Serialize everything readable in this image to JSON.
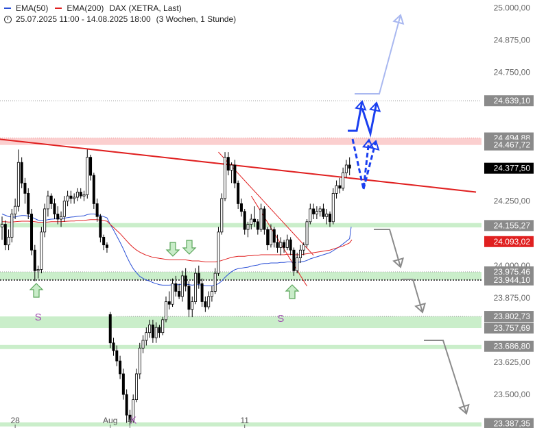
{
  "legend": {
    "ema50_label": "EMA(50)",
    "ema200_label": "EMA(200)",
    "instrument": "DAX (XETRA, Last)",
    "range": "25.07.2025 11:00 - 14.08.2025 18:00",
    "period": "(3 Wochen, 1 Stunde)"
  },
  "colors": {
    "ema50": "#2a4fd6",
    "ema200": "#e02020",
    "trendline": "#e02020",
    "support_zone": "#9fe09f",
    "resistance_zone": "#f7a7a7",
    "arrow_blue": "#1a3ff0",
    "arrow_lightblue": "#a9b8f0",
    "arrow_gray": "#8a8a8a",
    "candle": "#000000"
  },
  "chart_data": {
    "type": "candlestick",
    "x_ticks": [
      {
        "label": "28",
        "bar": 4
      },
      {
        "label": "Aug",
        "bar": 33
      },
      {
        "label": "4",
        "bar": 39
      },
      {
        "label": "11",
        "bar": 74
      }
    ],
    "y_ticks": [
      25000,
      24875,
      24750,
      24250,
      24000,
      23875,
      23625,
      23500
    ],
    "y_tick_labels": [
      "25.000,00",
      "24.875,00",
      "24.750,00",
      "24.250,00",
      "24.000,00",
      "23.875,00",
      "23.625,00",
      "23.500,00"
    ],
    "ylim": [
      23370,
      25030
    ],
    "levels": [
      {
        "value": 24639.1,
        "label": "24.639,10",
        "style": "dotted",
        "color": "#888888"
      },
      {
        "value": 24494.88,
        "label": "24.494,88",
        "style": "zone-red",
        "color": "#888888"
      },
      {
        "value": 24467.72,
        "label": "24.467,72",
        "style": "zone-red-low",
        "color": "#888888"
      },
      {
        "value": 24377.5,
        "label": "24.377,50",
        "style": "last",
        "color": "#000000"
      },
      {
        "value": 24155.27,
        "label": "24.155,27",
        "style": "zone-green",
        "color": "#888888"
      },
      {
        "value": 24093.02,
        "label": "24.093,02",
        "style": "ema200",
        "color": "#e02020"
      },
      {
        "value": 23975.46,
        "label": "23.975,46",
        "style": "zone-green",
        "color": "#888888"
      },
      {
        "value": 23944.1,
        "label": "23.944,10",
        "style": "dotted-bold",
        "color": "#888888"
      },
      {
        "value": 23802.73,
        "label": "23.802,73",
        "style": "zone-green",
        "color": "#888888"
      },
      {
        "value": 23757.69,
        "label": "23.757,69",
        "style": "zone-green-low",
        "color": "#888888"
      },
      {
        "value": 23686.8,
        "label": "23.686,80",
        "style": "zone-green",
        "color": "#888888"
      },
      {
        "value": 23387.35,
        "label": "23.387,35",
        "style": "zone-green",
        "color": "#888888"
      }
    ],
    "annotations": [
      {
        "text": "S",
        "bar": 11,
        "value": 23800
      },
      {
        "text": "K",
        "bar": 40,
        "value": 23400
      },
      {
        "text": "S",
        "bar": 85,
        "value": 23795
      }
    ],
    "candles": [
      {
        "o": 24150,
        "h": 24190,
        "l": 24100,
        "c": 24160
      },
      {
        "o": 24160,
        "h": 24175,
        "l": 24060,
        "c": 24080
      },
      {
        "o": 24080,
        "h": 24140,
        "l": 24060,
        "c": 24110
      },
      {
        "o": 24110,
        "h": 24220,
        "l": 24090,
        "c": 24200
      },
      {
        "o": 24200,
        "h": 24260,
        "l": 24180,
        "c": 24230
      },
      {
        "o": 24230,
        "h": 24450,
        "l": 24210,
        "c": 24400
      },
      {
        "o": 24400,
        "h": 24420,
        "l": 24300,
        "c": 24320
      },
      {
        "o": 24320,
        "h": 24340,
        "l": 24240,
        "c": 24280
      },
      {
        "o": 24280,
        "h": 24300,
        "l": 24180,
        "c": 24200
      },
      {
        "o": 24200,
        "h": 24220,
        "l": 24040,
        "c": 24060
      },
      {
        "o": 24060,
        "h": 24080,
        "l": 23940,
        "c": 23980
      },
      {
        "o": 23980,
        "h": 24000,
        "l": 23950,
        "c": 23985
      },
      {
        "o": 23985,
        "h": 24150,
        "l": 23970,
        "c": 24130
      },
      {
        "o": 24130,
        "h": 24240,
        "l": 24110,
        "c": 24220
      },
      {
        "o": 24220,
        "h": 24290,
        "l": 24190,
        "c": 24270
      },
      {
        "o": 24270,
        "h": 24280,
        "l": 24220,
        "c": 24240
      },
      {
        "o": 24240,
        "h": 24260,
        "l": 24180,
        "c": 24200
      },
      {
        "o": 24200,
        "h": 24230,
        "l": 24160,
        "c": 24180
      },
      {
        "o": 24180,
        "h": 24210,
        "l": 24150,
        "c": 24190
      },
      {
        "o": 24190,
        "h": 24270,
        "l": 24170,
        "c": 24250
      },
      {
        "o": 24250,
        "h": 24290,
        "l": 24230,
        "c": 24270
      },
      {
        "o": 24270,
        "h": 24290,
        "l": 24240,
        "c": 24260
      },
      {
        "o": 24260,
        "h": 24280,
        "l": 24240,
        "c": 24265
      },
      {
        "o": 24265,
        "h": 24300,
        "l": 24250,
        "c": 24285
      },
      {
        "o": 24285,
        "h": 24300,
        "l": 24260,
        "c": 24270
      },
      {
        "o": 24270,
        "h": 24290,
        "l": 24250,
        "c": 24275
      },
      {
        "o": 24275,
        "h": 24450,
        "l": 24260,
        "c": 24420
      },
      {
        "o": 24420,
        "h": 24430,
        "l": 24330,
        "c": 24350
      },
      {
        "o": 24350,
        "h": 24360,
        "l": 24220,
        "c": 24240
      },
      {
        "o": 24240,
        "h": 24260,
        "l": 24170,
        "c": 24190
      },
      {
        "o": 24190,
        "h": 24200,
        "l": 24090,
        "c": 24110
      },
      {
        "o": 24110,
        "h": 24120,
        "l": 24060,
        "c": 24080
      },
      {
        "o": 24080,
        "h": 24090,
        "l": 24050,
        "c": 24070
      },
      {
        "o": 23810,
        "h": 23820,
        "l": 23680,
        "c": 23700
      },
      {
        "o": 23700,
        "h": 23720,
        "l": 23650,
        "c": 23670
      },
      {
        "o": 23670,
        "h": 23690,
        "l": 23610,
        "c": 23630
      },
      {
        "o": 23630,
        "h": 23650,
        "l": 23560,
        "c": 23580
      },
      {
        "o": 23580,
        "h": 23600,
        "l": 23480,
        "c": 23500
      },
      {
        "o": 23500,
        "h": 23520,
        "l": 23390,
        "c": 23420
      },
      {
        "o": 23420,
        "h": 23440,
        "l": 23380,
        "c": 23400
      },
      {
        "o": 23400,
        "h": 23500,
        "l": 23390,
        "c": 23480
      },
      {
        "o": 23480,
        "h": 23600,
        "l": 23470,
        "c": 23580
      },
      {
        "o": 23580,
        "h": 23700,
        "l": 23560,
        "c": 23680
      },
      {
        "o": 23680,
        "h": 23730,
        "l": 23660,
        "c": 23710
      },
      {
        "o": 23710,
        "h": 23760,
        "l": 23690,
        "c": 23740
      },
      {
        "o": 23740,
        "h": 23790,
        "l": 23720,
        "c": 23770
      },
      {
        "o": 23770,
        "h": 23790,
        "l": 23700,
        "c": 23720
      },
      {
        "o": 23720,
        "h": 23780,
        "l": 23700,
        "c": 23760
      },
      {
        "o": 23760,
        "h": 23770,
        "l": 23720,
        "c": 23740
      },
      {
        "o": 23740,
        "h": 23800,
        "l": 23730,
        "c": 23790
      },
      {
        "o": 23790,
        "h": 23880,
        "l": 23780,
        "c": 23860
      },
      {
        "o": 23860,
        "h": 23900,
        "l": 23830,
        "c": 23850
      },
      {
        "o": 23850,
        "h": 23950,
        "l": 23840,
        "c": 23930
      },
      {
        "o": 23930,
        "h": 23960,
        "l": 23880,
        "c": 23900
      },
      {
        "o": 23900,
        "h": 23930,
        "l": 23870,
        "c": 23880
      },
      {
        "o": 23880,
        "h": 23980,
        "l": 23860,
        "c": 23960
      },
      {
        "o": 23960,
        "h": 23990,
        "l": 23900,
        "c": 23920
      },
      {
        "o": 23920,
        "h": 23940,
        "l": 23800,
        "c": 23830
      },
      {
        "o": 23830,
        "h": 23880,
        "l": 23800,
        "c": 23860
      },
      {
        "o": 23860,
        "h": 23990,
        "l": 23850,
        "c": 23970
      },
      {
        "o": 23970,
        "h": 24000,
        "l": 23910,
        "c": 23930
      },
      {
        "o": 23930,
        "h": 23950,
        "l": 23840,
        "c": 23860
      },
      {
        "o": 23860,
        "h": 23880,
        "l": 23820,
        "c": 23840
      },
      {
        "o": 23840,
        "h": 23900,
        "l": 23830,
        "c": 23880
      },
      {
        "o": 23880,
        "h": 23920,
        "l": 23860,
        "c": 23900
      },
      {
        "o": 23900,
        "h": 23990,
        "l": 23890,
        "c": 23970
      },
      {
        "o": 23970,
        "h": 24150,
        "l": 23960,
        "c": 24130
      },
      {
        "o": 24130,
        "h": 24280,
        "l": 24120,
        "c": 24260
      },
      {
        "o": 24260,
        "h": 24440,
        "l": 24250,
        "c": 24420
      },
      {
        "o": 24420,
        "h": 24440,
        "l": 24350,
        "c": 24370
      },
      {
        "o": 24370,
        "h": 24400,
        "l": 24320,
        "c": 24390
      },
      {
        "o": 24390,
        "h": 24410,
        "l": 24300,
        "c": 24320
      },
      {
        "o": 24320,
        "h": 24330,
        "l": 24220,
        "c": 24240
      },
      {
        "o": 24240,
        "h": 24260,
        "l": 24190,
        "c": 24210
      },
      {
        "o": 24210,
        "h": 24220,
        "l": 24120,
        "c": 24140
      },
      {
        "o": 24140,
        "h": 24170,
        "l": 24110,
        "c": 24160
      },
      {
        "o": 24160,
        "h": 24200,
        "l": 24140,
        "c": 24180
      },
      {
        "o": 24180,
        "h": 24230,
        "l": 24150,
        "c": 24170
      },
      {
        "o": 24170,
        "h": 24180,
        "l": 24120,
        "c": 24140
      },
      {
        "o": 24140,
        "h": 24240,
        "l": 24130,
        "c": 24220
      },
      {
        "o": 24220,
        "h": 24230,
        "l": 24120,
        "c": 24140
      },
      {
        "o": 24140,
        "h": 24150,
        "l": 24060,
        "c": 24080
      },
      {
        "o": 24080,
        "h": 24160,
        "l": 24070,
        "c": 24140
      },
      {
        "o": 24140,
        "h": 24150,
        "l": 24070,
        "c": 24090
      },
      {
        "o": 24090,
        "h": 24120,
        "l": 24050,
        "c": 24070
      },
      {
        "o": 24070,
        "h": 24110,
        "l": 24040,
        "c": 24090
      },
      {
        "o": 24090,
        "h": 24100,
        "l": 24050,
        "c": 24070
      },
      {
        "o": 24070,
        "h": 24120,
        "l": 24060,
        "c": 24100
      },
      {
        "o": 24100,
        "h": 24110,
        "l": 24040,
        "c": 24060
      },
      {
        "o": 24060,
        "h": 24070,
        "l": 23960,
        "c": 23980
      },
      {
        "o": 23980,
        "h": 24050,
        "l": 23970,
        "c": 24030
      },
      {
        "o": 24030,
        "h": 24080,
        "l": 24010,
        "c": 24060
      },
      {
        "o": 24060,
        "h": 24090,
        "l": 24040,
        "c": 24080
      },
      {
        "o": 24080,
        "h": 24180,
        "l": 24070,
        "c": 24170
      },
      {
        "o": 24170,
        "h": 24240,
        "l": 24160,
        "c": 24220
      },
      {
        "o": 24220,
        "h": 24240,
        "l": 24180,
        "c": 24200
      },
      {
        "o": 24200,
        "h": 24230,
        "l": 24180,
        "c": 24210
      },
      {
        "o": 24210,
        "h": 24230,
        "l": 24190,
        "c": 24220
      },
      {
        "o": 24220,
        "h": 24240,
        "l": 24180,
        "c": 24190
      },
      {
        "o": 24190,
        "h": 24220,
        "l": 24160,
        "c": 24200
      },
      {
        "o": 24200,
        "h": 24210,
        "l": 24150,
        "c": 24170
      },
      {
        "o": 24170,
        "h": 24300,
        "l": 24160,
        "c": 24280
      },
      {
        "o": 24280,
        "h": 24330,
        "l": 24260,
        "c": 24310
      },
      {
        "o": 24310,
        "h": 24340,
        "l": 24280,
        "c": 24300
      },
      {
        "o": 24300,
        "h": 24380,
        "l": 24290,
        "c": 24360
      },
      {
        "o": 24360,
        "h": 24410,
        "l": 24340,
        "c": 24390
      },
      {
        "o": 24390,
        "h": 24420,
        "l": 24350,
        "c": 24377.5
      }
    ],
    "ema50": [
      24200,
      24195,
      24190,
      24188,
      24188,
      24192,
      24194,
      24194,
      24192,
      24188,
      24182,
      24176,
      24174,
      24175,
      24178,
      24180,
      24181,
      24182,
      24182,
      24184,
      24186,
      24188,
      24189,
      24191,
      24192,
      24193,
      24198,
      24200,
      24200,
      24198,
      24194,
      24190,
      24185,
      24160,
      24138,
      24114,
      24090,
      24064,
      24036,
      24010,
      23988,
      23972,
      23958,
      23950,
      23944,
      23940,
      23934,
      23930,
      23926,
      23924,
      23924,
      23924,
      23926,
      23926,
      23926,
      23928,
      23928,
      23926,
      23924,
      23926,
      23926,
      23924,
      23922,
      23922,
      23922,
      23924,
      23930,
      23940,
      23954,
      23966,
      23976,
      23984,
      23988,
      23990,
      23992,
      23994,
      23998,
      24000,
      24002,
      24006,
      24008,
      24008,
      24010,
      24010,
      24010,
      24012,
      24012,
      24014,
      24014,
      24012,
      24012,
      24014,
      24016,
      24020,
      24026,
      24030,
      24034,
      24038,
      24042,
      24046,
      24050,
      24058,
      24066,
      24074,
      24084,
      24094,
      24104
    ],
    "ema200": [
      24170,
      24170,
      24169,
      24169,
      24170,
      24171,
      24172,
      24172,
      24172,
      24171,
      24170,
      24168,
      24168,
      24168,
      24169,
      24170,
      24170,
      24170,
      24170,
      24171,
      24172,
      24173,
      24173,
      24174,
      24174,
      24175,
      24177,
      24178,
      24178,
      24178,
      24176,
      24174,
      24172,
      24160,
      24148,
      24136,
      24124,
      24110,
      24096,
      24082,
      24070,
      24060,
      24052,
      24046,
      24040,
      24036,
      24032,
      24030,
      24028,
      24026,
      24024,
      24022,
      24022,
      24022,
      24022,
      24022,
      24022,
      24020,
      24018,
      24018,
      24018,
      24016,
      24014,
      24014,
      24014,
      24014,
      24016,
      24020,
      24024,
      24028,
      24032,
      24034,
      24036,
      24036,
      24036,
      24038,
      24038,
      24040,
      24040,
      24042,
      24042,
      24042,
      24042,
      24042,
      24042,
      24042,
      24042,
      24044,
      24044,
      24042,
      24042,
      24042,
      24044,
      24046,
      24048,
      24050,
      24052,
      24054,
      24056,
      24058,
      24060,
      24064,
      24068,
      24072,
      24076,
      24082,
      24088
    ]
  }
}
